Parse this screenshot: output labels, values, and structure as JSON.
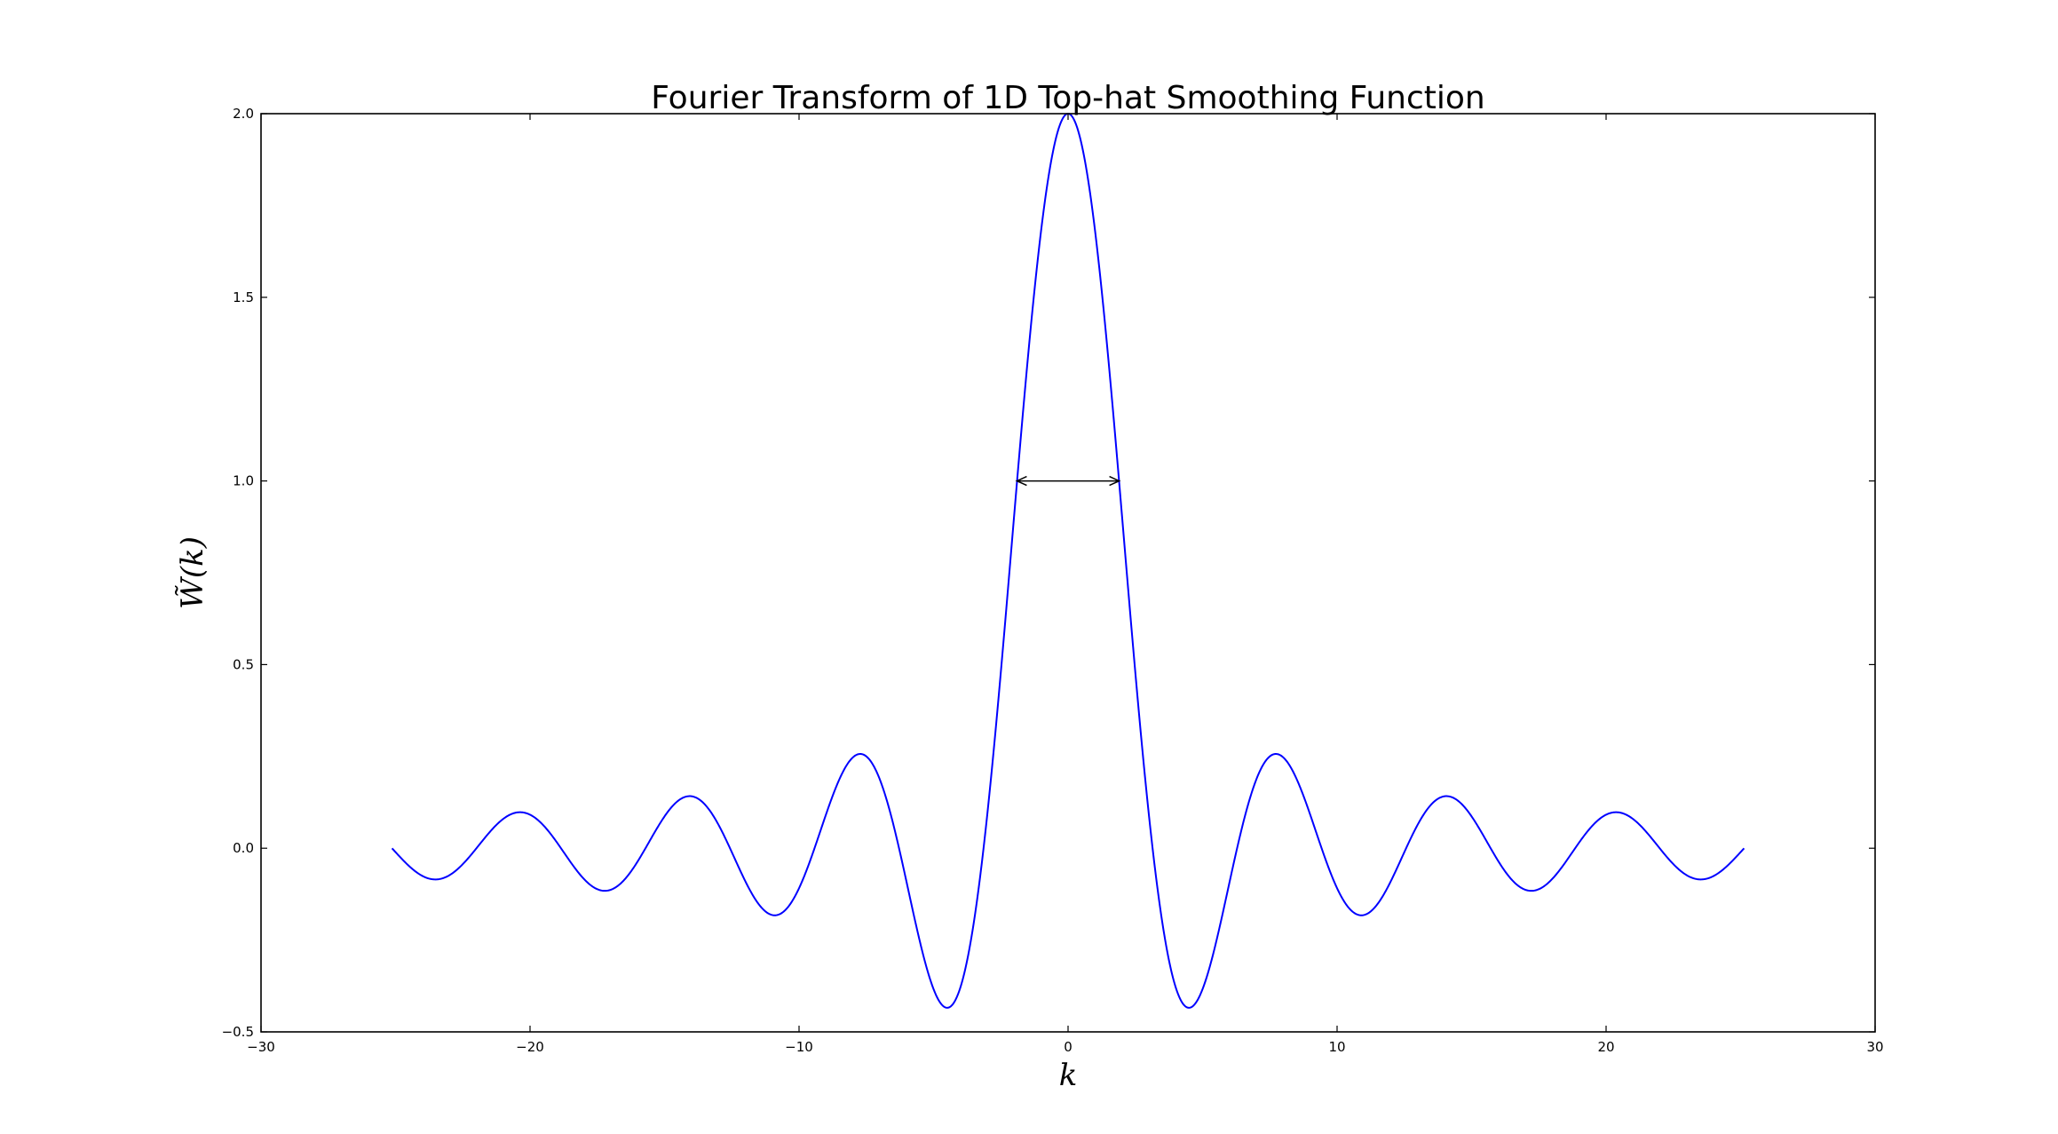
{
  "chart_data": {
    "type": "line",
    "title": "Fourier Transform of 1D Top-hat Smoothing Function",
    "xlabel": "k",
    "ylabel": "W̃(k)",
    "xlim": [
      -30,
      30
    ],
    "ylim": [
      -0.5,
      2.0
    ],
    "x_ticks": [
      -30,
      -20,
      -10,
      0,
      10,
      20,
      30
    ],
    "x_tick_labels": [
      "−30",
      "−20",
      "−10",
      "0",
      "10",
      "20",
      "30"
    ],
    "y_ticks": [
      -0.5,
      0.0,
      0.5,
      1.0,
      1.5,
      2.0
    ],
    "y_tick_labels": [
      "−0.5",
      "0.0",
      "0.5",
      "1.0",
      "1.5",
      "2.0"
    ],
    "grid": false,
    "series": [
      {
        "color": "#0000ff",
        "function": "2*sin(k)/k",
        "x_range": [
          -25.13,
          25.13
        ],
        "key_points": [
          {
            "x": -25.13,
            "y": 0.0
          },
          {
            "x": -23.52,
            "y": -0.085
          },
          {
            "x": -20.37,
            "y": 0.098
          },
          {
            "x": -17.22,
            "y": -0.116
          },
          {
            "x": -14.07,
            "y": 0.142
          },
          {
            "x": -10.9,
            "y": -0.182
          },
          {
            "x": -7.73,
            "y": 0.257
          },
          {
            "x": -4.49,
            "y": -0.434
          },
          {
            "x": 0.0,
            "y": 2.0
          },
          {
            "x": 4.49,
            "y": -0.434
          },
          {
            "x": 7.73,
            "y": 0.257
          },
          {
            "x": 10.9,
            "y": -0.182
          },
          {
            "x": 14.07,
            "y": 0.142
          },
          {
            "x": 17.22,
            "y": -0.116
          },
          {
            "x": 20.37,
            "y": 0.098
          },
          {
            "x": 23.52,
            "y": -0.085
          },
          {
            "x": 25.13,
            "y": 0.0
          }
        ]
      }
    ],
    "annotations": [
      {
        "type": "double-arrow",
        "x_start": -1.9,
        "x_end": 1.9,
        "y": 1.0,
        "color": "#000000"
      }
    ]
  }
}
